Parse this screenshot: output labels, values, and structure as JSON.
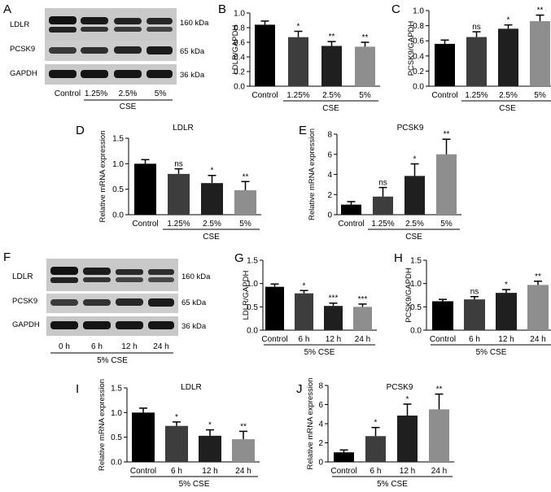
{
  "panels": {
    "A": {
      "label": "A",
      "blot_labels": [
        "LDLR",
        "PCSK9",
        "GAPDH"
      ],
      "kda": [
        "160 kDa",
        "65 kDa",
        "36 kDa"
      ],
      "lanes": [
        "Control",
        "1.25%",
        "2.5%",
        "5%"
      ],
      "group": "CSE"
    },
    "F": {
      "label": "F",
      "blot_labels": [
        "LDLR",
        "PCSK9",
        "GAPDH"
      ],
      "kda": [
        "160 kDa",
        "65 kDa",
        "36 kDa"
      ],
      "lanes": [
        "0 h",
        "6 h",
        "12 h",
        "24 h"
      ],
      "group": "5% CSE"
    }
  },
  "chart_data": [
    {
      "id": "B",
      "label": "B",
      "type": "bar",
      "title": "",
      "xlabel": "CSE",
      "ylabel": "LDLR/GAPDH",
      "categories": [
        "Control",
        "1.25%",
        "2.5%",
        "5%"
      ],
      "values": [
        0.84,
        0.67,
        0.55,
        0.54
      ],
      "errors": [
        0.05,
        0.08,
        0.06,
        0.06
      ],
      "significance": [
        "",
        "*",
        "**",
        "**"
      ],
      "ylim": [
        0,
        1.0
      ],
      "yticks": [
        "0.0",
        "0.2",
        "0.4",
        "0.6",
        "0.8",
        "1.0"
      ],
      "yticks_v": [
        0,
        0.2,
        0.4,
        0.6,
        0.8,
        1.0
      ],
      "group_start": 1
    },
    {
      "id": "C",
      "label": "C",
      "type": "bar",
      "title": "",
      "xlabel": "CSE",
      "ylabel": "PCSK9/GAPDH",
      "categories": [
        "Control",
        "1.25%",
        "2.5%",
        "5%"
      ],
      "values": [
        0.56,
        0.65,
        0.76,
        0.86
      ],
      "errors": [
        0.05,
        0.07,
        0.05,
        0.08
      ],
      "significance": [
        "",
        "ns",
        "*",
        "**"
      ],
      "ylim": [
        0,
        1.0
      ],
      "yticks": [
        "0.0",
        "0.2",
        "0.4",
        "0.6",
        "0.8",
        "1.0"
      ],
      "yticks_v": [
        0,
        0.2,
        0.4,
        0.6,
        0.8,
        1.0
      ],
      "group_start": 1
    },
    {
      "id": "D",
      "label": "D",
      "type": "bar",
      "title": "LDLR",
      "xlabel": "CSE",
      "ylabel": "Relative mRNA expression",
      "categories": [
        "Control",
        "1.25%",
        "2.5%",
        "5%"
      ],
      "values": [
        1.0,
        0.8,
        0.62,
        0.48
      ],
      "errors": [
        0.08,
        0.1,
        0.15,
        0.17
      ],
      "significance": [
        "",
        "ns",
        "*",
        "**"
      ],
      "ylim": [
        0,
        1.5
      ],
      "yticks": [
        "0.0",
        "0.5",
        "1.0",
        "1.5"
      ],
      "yticks_v": [
        0,
        0.5,
        1.0,
        1.5
      ],
      "group_start": 1
    },
    {
      "id": "E",
      "label": "E",
      "type": "bar",
      "title": "PCSK9",
      "xlabel": "CSE",
      "ylabel": "Relative mRNA expression",
      "categories": [
        "Control",
        "1.25%",
        "2.5%",
        "5%"
      ],
      "values": [
        1.0,
        1.8,
        3.85,
        6.0
      ],
      "errors": [
        0.3,
        0.9,
        1.2,
        1.5
      ],
      "significance": [
        "",
        "ns",
        "*",
        "**"
      ],
      "ylim": [
        0,
        8
      ],
      "yticks": [
        "0",
        "2",
        "4",
        "6",
        "8"
      ],
      "yticks_v": [
        0,
        2,
        4,
        6,
        8
      ],
      "group_start": 1
    },
    {
      "id": "G",
      "label": "G",
      "type": "bar",
      "title": "",
      "xlabel": "5% CSE",
      "ylabel": "LDLR/GAPDH",
      "categories": [
        "Control",
        "6 h",
        "12 h",
        "24 h"
      ],
      "values": [
        0.93,
        0.79,
        0.52,
        0.5
      ],
      "errors": [
        0.06,
        0.06,
        0.06,
        0.06
      ],
      "significance": [
        "",
        "*",
        "***",
        "***"
      ],
      "ylim": [
        0,
        1.5
      ],
      "yticks": [
        "0.0",
        "0.5",
        "1.0",
        "1.5"
      ],
      "yticks_v": [
        0,
        0.5,
        1.0,
        1.5
      ],
      "group_start": 0
    },
    {
      "id": "H",
      "label": "H",
      "type": "bar",
      "title": "",
      "xlabel": "5% CSE",
      "ylabel": "PCSK9/GAPDH",
      "categories": [
        "Control",
        "6 h",
        "12 h",
        "24 h"
      ],
      "values": [
        0.62,
        0.66,
        0.8,
        0.97
      ],
      "errors": [
        0.04,
        0.06,
        0.07,
        0.08
      ],
      "significance": [
        "",
        "ns",
        "*",
        "**"
      ],
      "ylim": [
        0,
        1.5
      ],
      "yticks": [
        "0.0",
        "0.5",
        "1.0",
        "1.5"
      ],
      "yticks_v": [
        0,
        0.5,
        1.0,
        1.5
      ],
      "group_start": 0
    },
    {
      "id": "I",
      "label": "I",
      "type": "bar",
      "title": "LDLR",
      "xlabel": "5% CSE",
      "ylabel": "Relative mRNA expression",
      "categories": [
        "Control",
        "6 h",
        "12 h",
        "24 h"
      ],
      "values": [
        1.0,
        0.73,
        0.53,
        0.46
      ],
      "errors": [
        0.09,
        0.08,
        0.12,
        0.16
      ],
      "significance": [
        "",
        "*",
        "*",
        "**"
      ],
      "ylim": [
        0,
        1.5
      ],
      "yticks": [
        "0.0",
        "0.5",
        "1.0",
        "1.5"
      ],
      "yticks_v": [
        0,
        0.5,
        1.0,
        1.5
      ],
      "group_start": 0
    },
    {
      "id": "J",
      "label": "J",
      "type": "bar",
      "title": "PCSK9",
      "xlabel": "5% CSE",
      "ylabel": "Relative mRNA expression",
      "categories": [
        "Control",
        "6 h",
        "12 h",
        "24 h"
      ],
      "values": [
        1.0,
        2.7,
        4.85,
        5.5
      ],
      "errors": [
        0.25,
        0.9,
        1.2,
        1.6
      ],
      "significance": [
        "",
        "*",
        "*",
        "**"
      ],
      "ylim": [
        0,
        8
      ],
      "yticks": [
        "0",
        "2",
        "4",
        "6",
        "8"
      ],
      "yticks_v": [
        0,
        2,
        4,
        6,
        8
      ],
      "group_start": 0
    }
  ],
  "colors": {
    "bars": [
      "#000000",
      "#3d3d3d",
      "#1f1f1f",
      "#8e8e8e"
    ],
    "blot_bg": "#c9c9c9",
    "band": "#141414"
  }
}
